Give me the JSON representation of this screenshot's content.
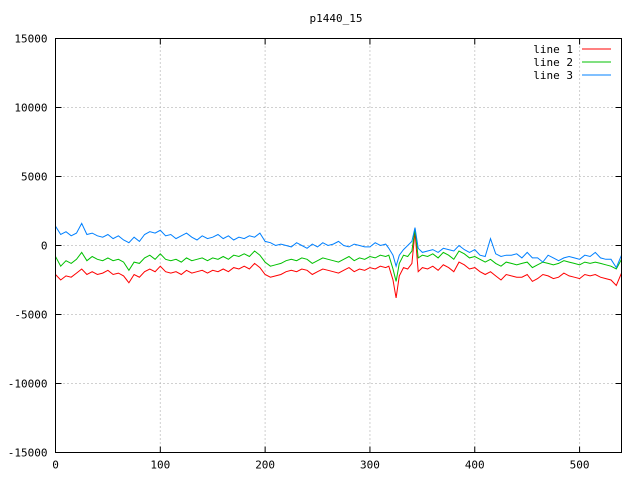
{
  "chart_data": {
    "type": "line",
    "title": "p1440_15",
    "xlabel": "",
    "ylabel": "",
    "xlim": [
      0,
      540
    ],
    "ylim": [
      -15000,
      15000
    ],
    "xticks": [
      0,
      100,
      200,
      300,
      400,
      500
    ],
    "xtick_labels": [
      "0",
      "100",
      "200",
      "300",
      "400",
      "500"
    ],
    "yticks": [
      -15000,
      -10000,
      -5000,
      0,
      5000,
      10000,
      15000
    ],
    "ytick_labels": [
      "-15000",
      "-10000",
      "-5000",
      "0",
      "5000",
      "10000",
      "15000"
    ],
    "grid": true,
    "legend_position": "top-right",
    "series": [
      {
        "name": "line 1",
        "color": "#ff0000",
        "x": [
          0,
          5,
          10,
          15,
          20,
          25,
          30,
          35,
          40,
          45,
          50,
          55,
          60,
          65,
          70,
          75,
          80,
          85,
          90,
          95,
          100,
          105,
          110,
          115,
          120,
          125,
          130,
          135,
          140,
          145,
          150,
          155,
          160,
          165,
          170,
          175,
          180,
          185,
          190,
          195,
          200,
          205,
          210,
          215,
          220,
          225,
          230,
          235,
          240,
          245,
          250,
          255,
          260,
          265,
          270,
          275,
          280,
          285,
          290,
          295,
          300,
          305,
          310,
          315,
          318,
          322,
          325,
          328,
          332,
          336,
          340,
          343,
          346,
          350,
          355,
          360,
          365,
          370,
          375,
          380,
          385,
          390,
          395,
          400,
          405,
          410,
          415,
          420,
          425,
          430,
          435,
          440,
          445,
          450,
          455,
          460,
          465,
          470,
          475,
          480,
          485,
          490,
          495,
          500,
          505,
          510,
          515,
          520,
          525,
          530,
          535,
          540
        ],
        "y": [
          -2100,
          -2500,
          -2200,
          -2300,
          -2000,
          -1700,
          -2100,
          -1900,
          -2100,
          -2000,
          -1800,
          -2100,
          -2000,
          -2200,
          -2700,
          -2100,
          -2300,
          -1900,
          -1700,
          -1900,
          -1500,
          -1900,
          -2000,
          -1900,
          -2100,
          -1800,
          -2000,
          -1900,
          -1800,
          -2000,
          -1800,
          -1900,
          -1700,
          -1900,
          -1600,
          -1700,
          -1500,
          -1700,
          -1300,
          -1600,
          -2100,
          -2300,
          -2200,
          -2100,
          -1900,
          -1800,
          -1900,
          -1700,
          -1800,
          -2100,
          -1900,
          -1700,
          -1800,
          -1900,
          -2000,
          -1800,
          -1600,
          -1900,
          -1700,
          -1800,
          -1600,
          -1700,
          -1500,
          -1600,
          -1500,
          -2500,
          -3800,
          -2200,
          -1600,
          -1700,
          -1300,
          1000,
          -1900,
          -1600,
          -1700,
          -1500,
          -1800,
          -1400,
          -1600,
          -1900,
          -1200,
          -1400,
          -1700,
          -1600,
          -1900,
          -2100,
          -1900,
          -2200,
          -2500,
          -2100,
          -2200,
          -2300,
          -2300,
          -2100,
          -2600,
          -2400,
          -2100,
          -2200,
          -2400,
          -2300,
          -2000,
          -2200,
          -2300,
          -2400,
          -2100,
          -2200,
          -2100,
          -2300,
          -2400,
          -2500,
          -2900,
          -2000
        ]
      },
      {
        "name": "line 2",
        "color": "#00c000",
        "x": [
          0,
          5,
          10,
          15,
          20,
          25,
          30,
          35,
          40,
          45,
          50,
          55,
          60,
          65,
          70,
          75,
          80,
          85,
          90,
          95,
          100,
          105,
          110,
          115,
          120,
          125,
          130,
          135,
          140,
          145,
          150,
          155,
          160,
          165,
          170,
          175,
          180,
          185,
          190,
          195,
          200,
          205,
          210,
          215,
          220,
          225,
          230,
          235,
          240,
          245,
          250,
          255,
          260,
          265,
          270,
          275,
          280,
          285,
          290,
          295,
          300,
          305,
          310,
          315,
          318,
          322,
          325,
          328,
          332,
          336,
          340,
          343,
          346,
          350,
          355,
          360,
          365,
          370,
          375,
          380,
          385,
          390,
          395,
          400,
          405,
          410,
          415,
          420,
          425,
          430,
          435,
          440,
          445,
          450,
          455,
          460,
          465,
          470,
          475,
          480,
          485,
          490,
          495,
          500,
          505,
          510,
          515,
          520,
          525,
          530,
          535,
          540
        ],
        "y": [
          -800,
          -1500,
          -1100,
          -1300,
          -1000,
          -500,
          -1100,
          -800,
          -1000,
          -1100,
          -900,
          -1100,
          -1000,
          -1200,
          -1800,
          -1200,
          -1300,
          -900,
          -700,
          -1000,
          -600,
          -1000,
          -1100,
          -1000,
          -1200,
          -900,
          -1100,
          -1000,
          -900,
          -1100,
          -900,
          -1000,
          -800,
          -1000,
          -700,
          -800,
          -600,
          -800,
          -400,
          -700,
          -1200,
          -1500,
          -1400,
          -1300,
          -1100,
          -1000,
          -1100,
          -900,
          -1000,
          -1300,
          -1100,
          -900,
          -1000,
          -1100,
          -1200,
          -1000,
          -800,
          -1100,
          -900,
          -1000,
          -800,
          -900,
          -700,
          -800,
          -700,
          -1700,
          -2600,
          -1300,
          -700,
          -800,
          -400,
          1200,
          -900,
          -700,
          -800,
          -600,
          -900,
          -500,
          -700,
          -1000,
          -400,
          -600,
          -900,
          -800,
          -1000,
          -1200,
          -1000,
          -1300,
          -1500,
          -1200,
          -1300,
          -1400,
          -1300,
          -1200,
          -1600,
          -1400,
          -1200,
          -1300,
          -1400,
          -1300,
          -1100,
          -1200,
          -1300,
          -1400,
          -1200,
          -1300,
          -1200,
          -1300,
          -1400,
          -1500,
          -1700,
          -1000
        ]
      },
      {
        "name": "line 3",
        "color": "#0080ff",
        "x": [
          0,
          5,
          10,
          15,
          20,
          25,
          30,
          35,
          40,
          45,
          50,
          55,
          60,
          65,
          70,
          75,
          80,
          85,
          90,
          95,
          100,
          105,
          110,
          115,
          120,
          125,
          130,
          135,
          140,
          145,
          150,
          155,
          160,
          165,
          170,
          175,
          180,
          185,
          190,
          195,
          200,
          205,
          210,
          215,
          220,
          225,
          230,
          235,
          240,
          245,
          250,
          255,
          260,
          265,
          270,
          275,
          280,
          285,
          290,
          295,
          300,
          305,
          310,
          315,
          318,
          322,
          325,
          328,
          332,
          336,
          340,
          343,
          346,
          350,
          355,
          360,
          365,
          370,
          375,
          380,
          385,
          390,
          395,
          400,
          405,
          410,
          415,
          420,
          425,
          430,
          435,
          440,
          445,
          450,
          455,
          460,
          465,
          470,
          475,
          480,
          485,
          490,
          495,
          500,
          505,
          510,
          515,
          520,
          525,
          530,
          535,
          540
        ],
        "y": [
          1400,
          800,
          1000,
          700,
          900,
          1600,
          800,
          900,
          700,
          600,
          800,
          500,
          700,
          400,
          200,
          600,
          300,
          800,
          1000,
          900,
          1100,
          700,
          800,
          500,
          700,
          900,
          600,
          400,
          700,
          500,
          600,
          800,
          500,
          700,
          400,
          600,
          500,
          700,
          600,
          900,
          300,
          200,
          0,
          100,
          0,
          -100,
          200,
          0,
          -200,
          100,
          -100,
          200,
          0,
          100,
          300,
          0,
          -100,
          100,
          0,
          -100,
          -100,
          200,
          0,
          100,
          -200,
          -700,
          -1500,
          -700,
          -300,
          0,
          300,
          1300,
          -200,
          -500,
          -400,
          -300,
          -500,
          -200,
          -300,
          -400,
          0,
          -300,
          -500,
          -300,
          -700,
          -800,
          500,
          -600,
          -800,
          -700,
          -700,
          -600,
          -900,
          -500,
          -900,
          -900,
          -1200,
          -700,
          -900,
          -1100,
          -900,
          -800,
          -900,
          -1000,
          -700,
          -800,
          -500,
          -900,
          -1000,
          -1000,
          -1600,
          -700
        ]
      }
    ]
  }
}
